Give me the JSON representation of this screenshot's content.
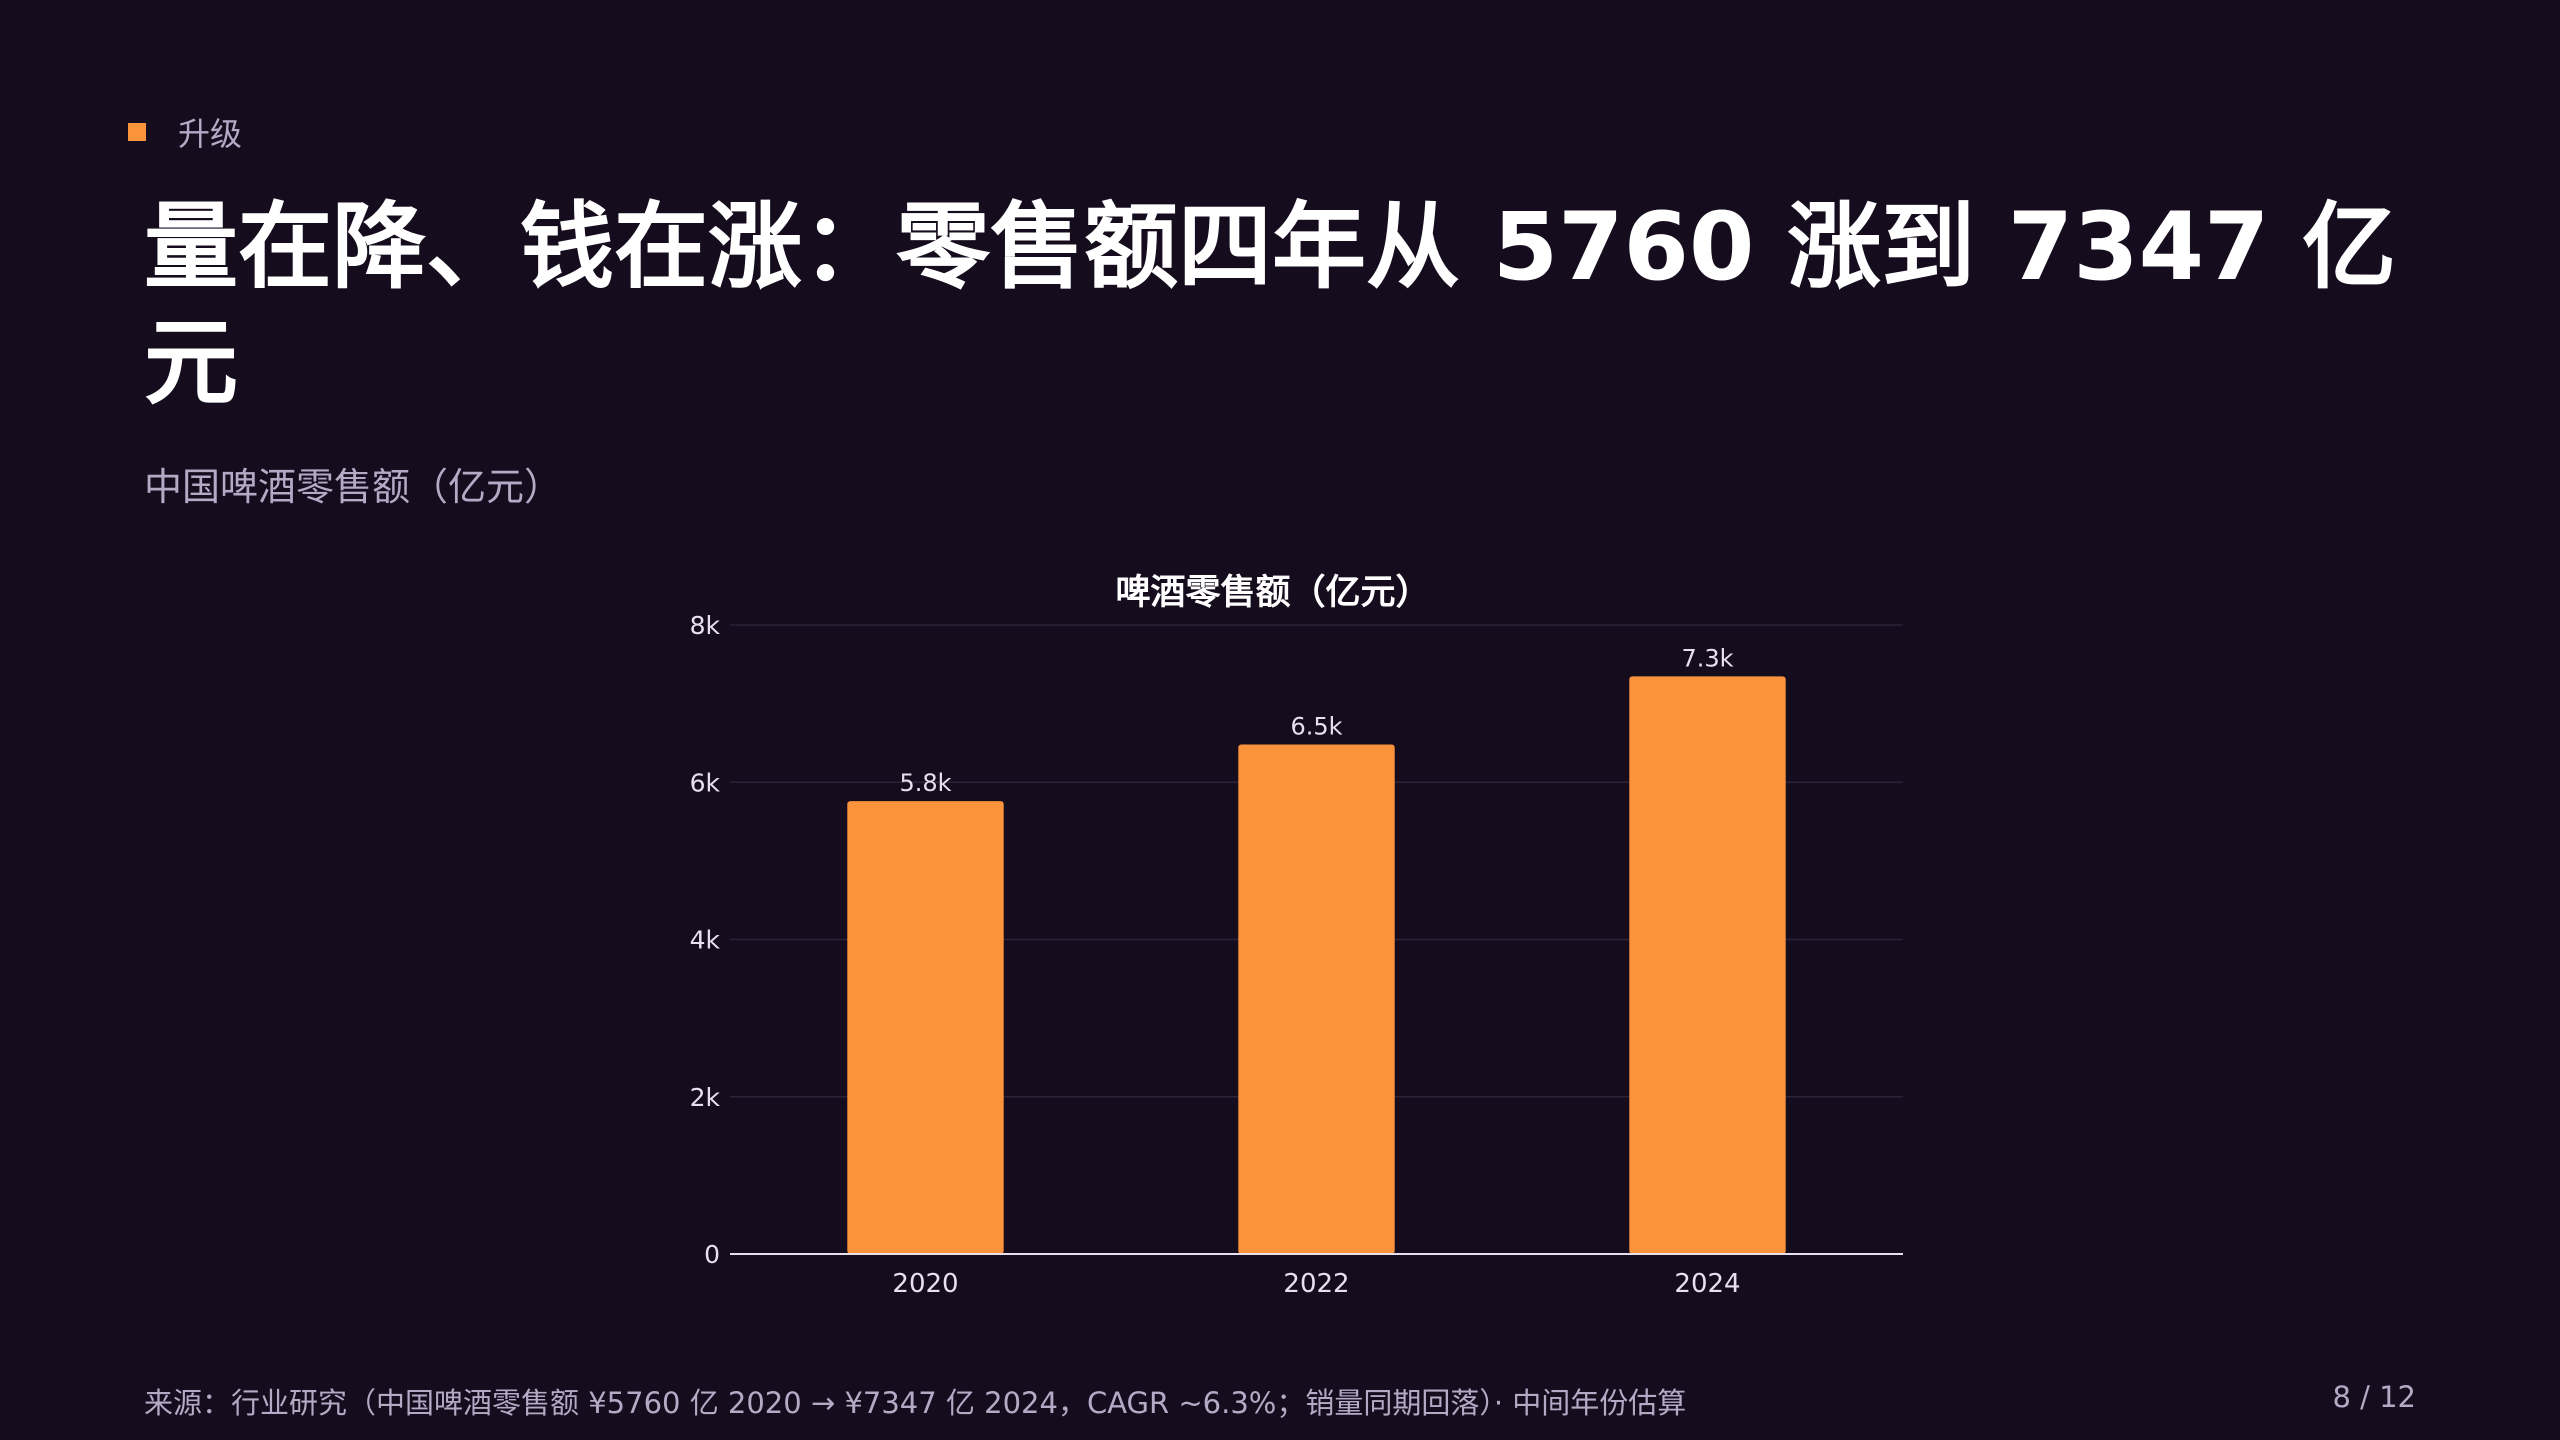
{
  "eyebrow": {
    "label": "升级",
    "accent_color": "#fb923c"
  },
  "title": "量在降、钱在涨：零售额四年从 5760 涨到 7347 亿元",
  "subtitle": "中国啤酒零售额（亿元）",
  "chart_data": {
    "type": "bar",
    "title": "啤酒零售额（亿元）",
    "categories": [
      "2020",
      "2022",
      "2024"
    ],
    "values": [
      5760,
      6480,
      7347
    ],
    "data_labels": [
      "5.8k",
      "6.5k",
      "7.3k"
    ],
    "ylim": [
      0,
      8000
    ],
    "yticks": [
      0,
      2000,
      4000,
      6000,
      8000
    ],
    "ytick_labels": [
      "0",
      "2k",
      "4k",
      "6k",
      "8k"
    ],
    "xlabel": "",
    "ylabel": "",
    "grid": true,
    "bar_color": "#fb923c"
  },
  "footer": {
    "source": "来源：行业研究（中国啤酒零售额 ¥5760 亿 2020 → ¥7347 亿 2024，CAGR ~6.3%；销量同期回落）· 中间年份估算",
    "page": "8 / 12"
  }
}
